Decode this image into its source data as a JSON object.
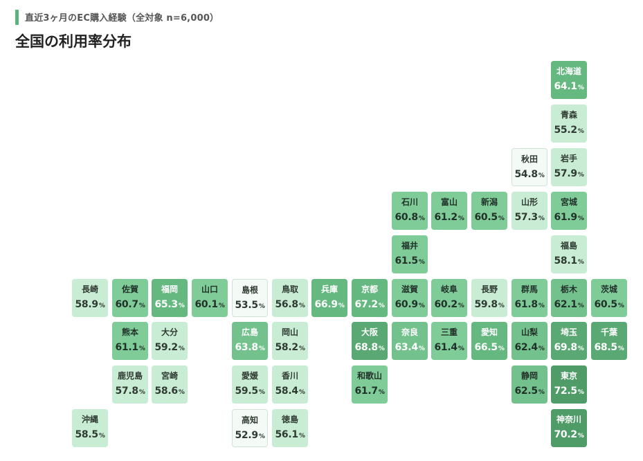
{
  "header": {
    "subtitle": "直近3ヶ月のEC購入経験（全対象 n=6,000）",
    "title": "全国の利用率分布"
  },
  "colors": {
    "accent": "#5bb27a",
    "scale": [
      "#f4fbf6",
      "#c9edd4",
      "#a6dfb9",
      "#7fcc98",
      "#65b880",
      "#4f9c69"
    ]
  },
  "chart_data": {
    "type": "heatmap",
    "unit": "%",
    "prefectures": [
      {
        "name": "北海道",
        "value": 64.1,
        "col": 13,
        "row": 0
      },
      {
        "name": "青森",
        "value": 55.2,
        "col": 13,
        "row": 1
      },
      {
        "name": "秋田",
        "value": 54.8,
        "col": 12,
        "row": 2
      },
      {
        "name": "岩手",
        "value": 57.9,
        "col": 13,
        "row": 2
      },
      {
        "name": "石川",
        "value": 60.8,
        "col": 9,
        "row": 3
      },
      {
        "name": "富山",
        "value": 61.2,
        "col": 10,
        "row": 3
      },
      {
        "name": "新潟",
        "value": 60.5,
        "col": 11,
        "row": 3
      },
      {
        "name": "山形",
        "value": 57.3,
        "col": 12,
        "row": 3
      },
      {
        "name": "宮城",
        "value": 61.9,
        "col": 13,
        "row": 3
      },
      {
        "name": "福井",
        "value": 61.5,
        "col": 9,
        "row": 4
      },
      {
        "name": "福島",
        "value": 58.1,
        "col": 13,
        "row": 4
      },
      {
        "name": "長崎",
        "value": 58.9,
        "col": 1,
        "row": 5
      },
      {
        "name": "佐賀",
        "value": 60.7,
        "col": 2,
        "row": 5
      },
      {
        "name": "福岡",
        "value": 65.3,
        "col": 3,
        "row": 5
      },
      {
        "name": "山口",
        "value": 60.1,
        "col": 4,
        "row": 5
      },
      {
        "name": "島根",
        "value": 53.5,
        "col": 5,
        "row": 5
      },
      {
        "name": "鳥取",
        "value": 56.8,
        "col": 6,
        "row": 5
      },
      {
        "name": "兵庫",
        "value": 66.9,
        "col": 7,
        "row": 5
      },
      {
        "name": "京都",
        "value": 67.2,
        "col": 8,
        "row": 5
      },
      {
        "name": "滋賀",
        "value": 60.9,
        "col": 9,
        "row": 5
      },
      {
        "name": "岐阜",
        "value": 60.2,
        "col": 10,
        "row": 5
      },
      {
        "name": "長野",
        "value": 59.8,
        "col": 11,
        "row": 5
      },
      {
        "name": "群馬",
        "value": 61.8,
        "col": 12,
        "row": 5
      },
      {
        "name": "栃木",
        "value": 62.1,
        "col": 13,
        "row": 5
      },
      {
        "name": "茨城",
        "value": 60.5,
        "col": 14,
        "row": 5
      },
      {
        "name": "熊本",
        "value": 61.1,
        "col": 2,
        "row": 6
      },
      {
        "name": "大分",
        "value": 59.2,
        "col": 3,
        "row": 6
      },
      {
        "name": "広島",
        "value": 63.8,
        "col": 5,
        "row": 6
      },
      {
        "name": "岡山",
        "value": 58.2,
        "col": 6,
        "row": 6
      },
      {
        "name": "大阪",
        "value": 68.8,
        "col": 8,
        "row": 6
      },
      {
        "name": "奈良",
        "value": 63.4,
        "col": 9,
        "row": 6
      },
      {
        "name": "三重",
        "value": 61.4,
        "col": 10,
        "row": 6
      },
      {
        "name": "愛知",
        "value": 66.5,
        "col": 11,
        "row": 6
      },
      {
        "name": "山梨",
        "value": 62.4,
        "col": 12,
        "row": 6
      },
      {
        "name": "埼玉",
        "value": 69.8,
        "col": 13,
        "row": 6
      },
      {
        "name": "千葉",
        "value": 68.5,
        "col": 14,
        "row": 6
      },
      {
        "name": "鹿児島",
        "value": 57.8,
        "col": 2,
        "row": 7
      },
      {
        "name": "宮崎",
        "value": 58.6,
        "col": 3,
        "row": 7
      },
      {
        "name": "愛媛",
        "value": 59.5,
        "col": 5,
        "row": 7
      },
      {
        "name": "香川",
        "value": 58.4,
        "col": 6,
        "row": 7
      },
      {
        "name": "和歌山",
        "value": 61.7,
        "col": 8,
        "row": 7
      },
      {
        "name": "静岡",
        "value": 62.5,
        "col": 12,
        "row": 7
      },
      {
        "name": "東京",
        "value": 72.5,
        "col": 13,
        "row": 7
      },
      {
        "name": "沖縄",
        "value": 58.5,
        "col": 1,
        "row": 8
      },
      {
        "name": "高知",
        "value": 52.9,
        "col": 5,
        "row": 8
      },
      {
        "name": "徳島",
        "value": 56.1,
        "col": 6,
        "row": 8
      },
      {
        "name": "神奈川",
        "value": 70.2,
        "col": 13,
        "row": 8
      }
    ]
  }
}
